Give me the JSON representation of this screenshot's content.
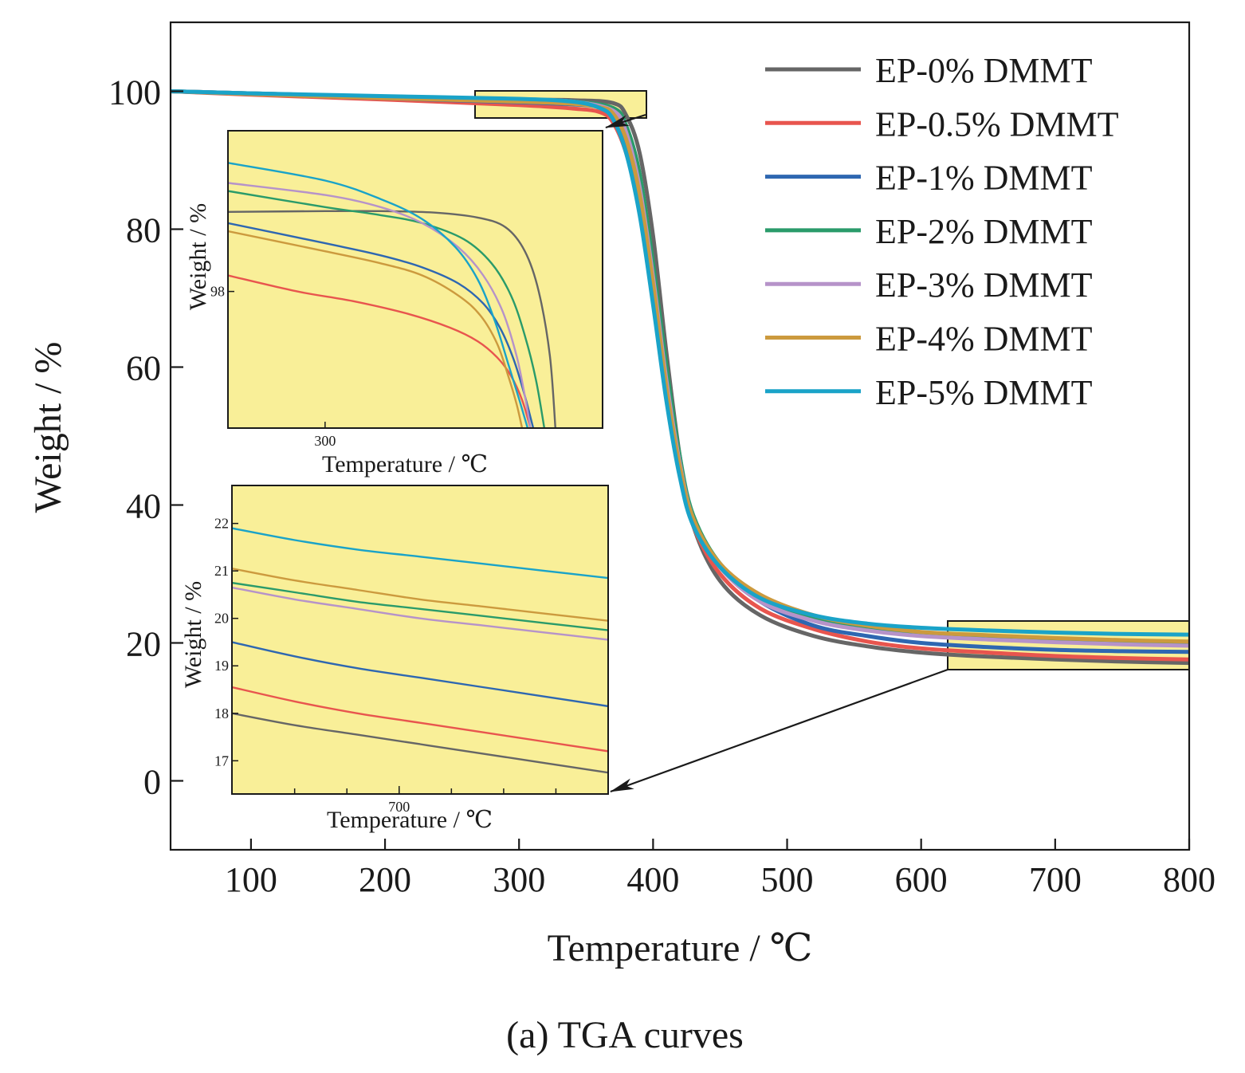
{
  "caption": "(a) TGA curves",
  "chart_data": [
    {
      "type": "line",
      "role": "main",
      "xlabel": "Temperature / ℃",
      "ylabel": "Weight / %",
      "xlim": [
        40,
        800
      ],
      "ylim": [
        -10,
        110
      ],
      "xticks": [
        100,
        200,
        300,
        400,
        500,
        600,
        700,
        800
      ],
      "yticks": [
        0,
        20,
        40,
        60,
        80,
        100
      ],
      "legend_position": "top-right",
      "grid": false,
      "series": [
        {
          "name": "EP-0% DMMT",
          "color": "#666666",
          "x": [
            40,
            100,
            200,
            300,
            340,
            370,
            380,
            390,
            400,
            410,
            420,
            430,
            450,
            480,
            520,
            560,
            600,
            650,
            700,
            750,
            800
          ],
          "y": [
            100,
            99.7,
            99.2,
            98.8,
            98.7,
            98.3,
            96.5,
            91,
            79,
            62,
            47,
            37,
            29,
            24,
            21,
            19.5,
            18.6,
            18.0,
            17.6,
            17.3,
            17.1
          ]
        },
        {
          "name": "EP-0.5% DMMT",
          "color": "#e8554e",
          "x": [
            40,
            100,
            200,
            300,
            340,
            360,
            370,
            380,
            390,
            400,
            410,
            420,
            430,
            450,
            480,
            520,
            560,
            600,
            650,
            700,
            750,
            800
          ],
          "y": [
            100,
            99.5,
            98.8,
            98.0,
            97.5,
            97.0,
            95.5,
            91,
            83,
            71,
            57,
            45,
            37,
            30,
            25,
            22,
            20.2,
            19.2,
            18.6,
            18.1,
            17.8,
            17.6
          ]
        },
        {
          "name": "EP-1% DMMT",
          "color": "#2e67b1",
          "x": [
            40,
            100,
            200,
            300,
            340,
            360,
            370,
            380,
            390,
            400,
            410,
            420,
            430,
            450,
            480,
            520,
            560,
            600,
            650,
            700,
            750,
            800
          ],
          "y": [
            100,
            99.6,
            99.0,
            98.4,
            98.1,
            97.7,
            96.5,
            92,
            84,
            72,
            58,
            46,
            38,
            31,
            26,
            22.5,
            21,
            20,
            19.4,
            19.0,
            18.8,
            18.7
          ]
        },
        {
          "name": "EP-2% DMMT",
          "color": "#2a9b6a",
          "x": [
            40,
            100,
            200,
            300,
            340,
            370,
            380,
            390,
            400,
            410,
            420,
            430,
            450,
            480,
            520,
            560,
            600,
            650,
            700,
            750,
            800
          ],
          "y": [
            100,
            99.7,
            99.2,
            98.8,
            98.5,
            97.6,
            95,
            88,
            75,
            60,
            47,
            38.5,
            31.5,
            26.5,
            23.5,
            22,
            21.2,
            20.8,
            20.5,
            20.2,
            20.0
          ]
        },
        {
          "name": "EP-3% DMMT",
          "color": "#b693c9",
          "x": [
            40,
            100,
            200,
            300,
            340,
            370,
            380,
            390,
            400,
            410,
            420,
            430,
            450,
            480,
            520,
            560,
            600,
            650,
            700,
            750,
            800
          ],
          "y": [
            100,
            99.7,
            99.2,
            98.8,
            98.5,
            97.2,
            94,
            86,
            73,
            58,
            46,
            38,
            31,
            26,
            23.2,
            21.8,
            21.0,
            20.5,
            20.1,
            19.8,
            19.6
          ]
        },
        {
          "name": "EP-4% DMMT",
          "color": "#cc9a3e",
          "x": [
            40,
            100,
            200,
            300,
            340,
            360,
            370,
            380,
            390,
            400,
            410,
            420,
            430,
            450,
            480,
            520,
            560,
            600,
            650,
            700,
            750,
            800
          ],
          "y": [
            100,
            99.6,
            99.0,
            98.5,
            98.2,
            97.7,
            96.8,
            93,
            85,
            72,
            57,
            45.5,
            38,
            31.5,
            27,
            24,
            22.5,
            21.6,
            21.1,
            20.7,
            20.4,
            20.2
          ]
        },
        {
          "name": "EP-5% DMMT",
          "color": "#1aa3c8",
          "x": [
            40,
            100,
            200,
            300,
            340,
            360,
            370,
            380,
            390,
            400,
            410,
            420,
            430,
            450,
            480,
            520,
            560,
            600,
            650,
            700,
            750,
            800
          ],
          "y": [
            100,
            99.7,
            99.3,
            98.9,
            98.5,
            97.6,
            96,
            91,
            82,
            69,
            55,
            44,
            37,
            31,
            26.5,
            24,
            22.8,
            22.2,
            21.8,
            21.5,
            21.3,
            21.2
          ]
        }
      ]
    },
    {
      "type": "line",
      "role": "inset-upper",
      "xlabel": "Temperature / ℃",
      "ylabel": "Weight / %",
      "xlim": [
        265,
        400
      ],
      "ylim": [
        96.3,
        100
      ],
      "xticks": [
        300
      ],
      "yticks": [
        98
      ],
      "series": [
        {
          "name": "EP-0% DMMT",
          "color": "#666666",
          "x": [
            265,
            300,
            320,
            340,
            355,
            365,
            372,
            377,
            381,
            383
          ],
          "y": [
            98.99,
            99.0,
            99.0,
            98.98,
            98.92,
            98.8,
            98.5,
            98.0,
            97.2,
            96.3
          ]
        },
        {
          "name": "EP-0.5% DMMT",
          "color": "#e8554e",
          "x": [
            265,
            290,
            310,
            330,
            345,
            355,
            362,
            367,
            371,
            374
          ],
          "y": [
            98.2,
            98.0,
            97.88,
            97.72,
            97.55,
            97.38,
            97.18,
            96.95,
            96.65,
            96.3
          ]
        },
        {
          "name": "EP-1% DMMT",
          "color": "#2e67b1",
          "x": [
            265,
            300,
            320,
            335,
            348,
            357,
            363,
            368,
            372,
            375
          ],
          "y": [
            98.85,
            98.6,
            98.45,
            98.3,
            98.1,
            97.85,
            97.55,
            97.15,
            96.7,
            96.3
          ]
        },
        {
          "name": "EP-2% DMMT",
          "color": "#2a9b6a",
          "x": [
            265,
            300,
            320,
            335,
            350,
            360,
            367,
            372,
            376,
            379
          ],
          "y": [
            99.25,
            99.05,
            98.95,
            98.85,
            98.65,
            98.35,
            97.95,
            97.45,
            96.9,
            96.3
          ]
        },
        {
          "name": "EP-3% DMMT",
          "color": "#b693c9",
          "x": [
            265,
            300,
            320,
            335,
            348,
            357,
            364,
            369,
            372,
            374
          ],
          "y": [
            99.35,
            99.2,
            99.05,
            98.85,
            98.55,
            98.2,
            97.75,
            97.2,
            96.7,
            96.3
          ]
        },
        {
          "name": "EP-4% DMMT",
          "color": "#cc9a3e",
          "x": [
            265,
            300,
            320,
            335,
            348,
            356,
            362,
            366,
            369,
            371
          ],
          "y": [
            98.75,
            98.5,
            98.35,
            98.2,
            97.95,
            97.7,
            97.35,
            96.95,
            96.6,
            96.3
          ]
        },
        {
          "name": "EP-5% DMMT",
          "color": "#1aa3c8",
          "x": [
            265,
            300,
            320,
            335,
            347,
            355,
            361,
            366,
            370,
            373
          ],
          "y": [
            99.6,
            99.38,
            99.15,
            98.9,
            98.55,
            98.15,
            97.65,
            97.1,
            96.65,
            96.3
          ]
        }
      ]
    },
    {
      "type": "line",
      "role": "inset-lower",
      "xlabel": "Temperature / ℃",
      "ylabel": "Weight / %",
      "xlim": [
        620,
        800
      ],
      "ylim": [
        16.3,
        22.8
      ],
      "xticks": [
        700
      ],
      "yticks": [
        17,
        18,
        19,
        20,
        21,
        22
      ],
      "series": [
        {
          "name": "EP-0% DMMT",
          "color": "#666666",
          "x": [
            620,
            650,
            680,
            710,
            740,
            770,
            800
          ],
          "y": [
            18.0,
            17.75,
            17.55,
            17.35,
            17.15,
            16.95,
            16.75
          ]
        },
        {
          "name": "EP-0.5% DMMT",
          "color": "#e8554e",
          "x": [
            620,
            650,
            680,
            710,
            740,
            770,
            800
          ],
          "y": [
            18.55,
            18.25,
            18.0,
            17.8,
            17.6,
            17.4,
            17.2
          ]
        },
        {
          "name": "EP-1% DMMT",
          "color": "#2e67b1",
          "x": [
            620,
            650,
            680,
            710,
            740,
            770,
            800
          ],
          "y": [
            19.5,
            19.2,
            18.95,
            18.75,
            18.55,
            18.35,
            18.15
          ]
        },
        {
          "name": "EP-2% DMMT",
          "color": "#2a9b6a",
          "x": [
            620,
            650,
            680,
            710,
            740,
            770,
            800
          ],
          "y": [
            20.75,
            20.55,
            20.35,
            20.2,
            20.05,
            19.9,
            19.75
          ]
        },
        {
          "name": "EP-3% DMMT",
          "color": "#b693c9",
          "x": [
            620,
            650,
            680,
            710,
            740,
            770,
            800
          ],
          "y": [
            20.65,
            20.4,
            20.2,
            20.0,
            19.85,
            19.7,
            19.55
          ]
        },
        {
          "name": "EP-4% DMMT",
          "color": "#cc9a3e",
          "x": [
            620,
            650,
            680,
            710,
            740,
            770,
            800
          ],
          "y": [
            21.05,
            20.8,
            20.6,
            20.4,
            20.25,
            20.1,
            19.95
          ]
        },
        {
          "name": "EP-5% DMMT",
          "color": "#1aa3c8",
          "x": [
            620,
            650,
            680,
            710,
            740,
            770,
            800
          ],
          "y": [
            21.9,
            21.65,
            21.45,
            21.3,
            21.15,
            21.0,
            20.85
          ]
        }
      ]
    }
  ]
}
